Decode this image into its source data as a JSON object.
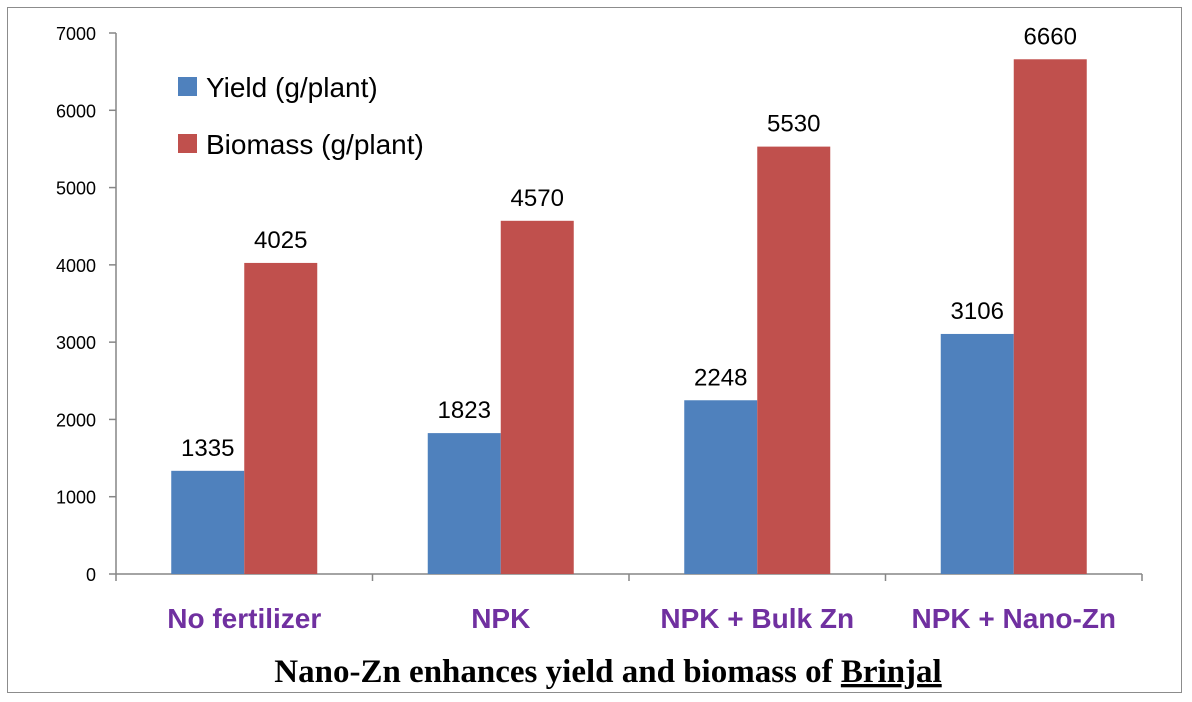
{
  "chart_data": {
    "type": "bar",
    "title": "Nano-Zn enhances yield and biomass of Brinjal",
    "title_prefix": "Nano-Zn enhances yield and biomass of ",
    "title_underlined_word": "Brinjal",
    "categories": [
      "No fertilizer",
      "NPK",
      "NPK + Bulk Zn",
      "NPK + Nano-Zn"
    ],
    "series": [
      {
        "name": "Yield (g/plant)",
        "values": [
          1335,
          1823,
          2248,
          3106
        ],
        "color": "#4f81bd"
      },
      {
        "name": "Biomass (g/plant)",
        "values": [
          4025,
          4570,
          5530,
          6660
        ],
        "color": "#c0504d"
      }
    ],
    "ylim": [
      0,
      7000
    ],
    "yticks": [
      0,
      1000,
      2000,
      3000,
      4000,
      5000,
      6000,
      7000
    ],
    "xlabel": "",
    "ylabel": "",
    "grid": false,
    "legend_position": "top-left",
    "category_label_color": "#7030a0"
  }
}
